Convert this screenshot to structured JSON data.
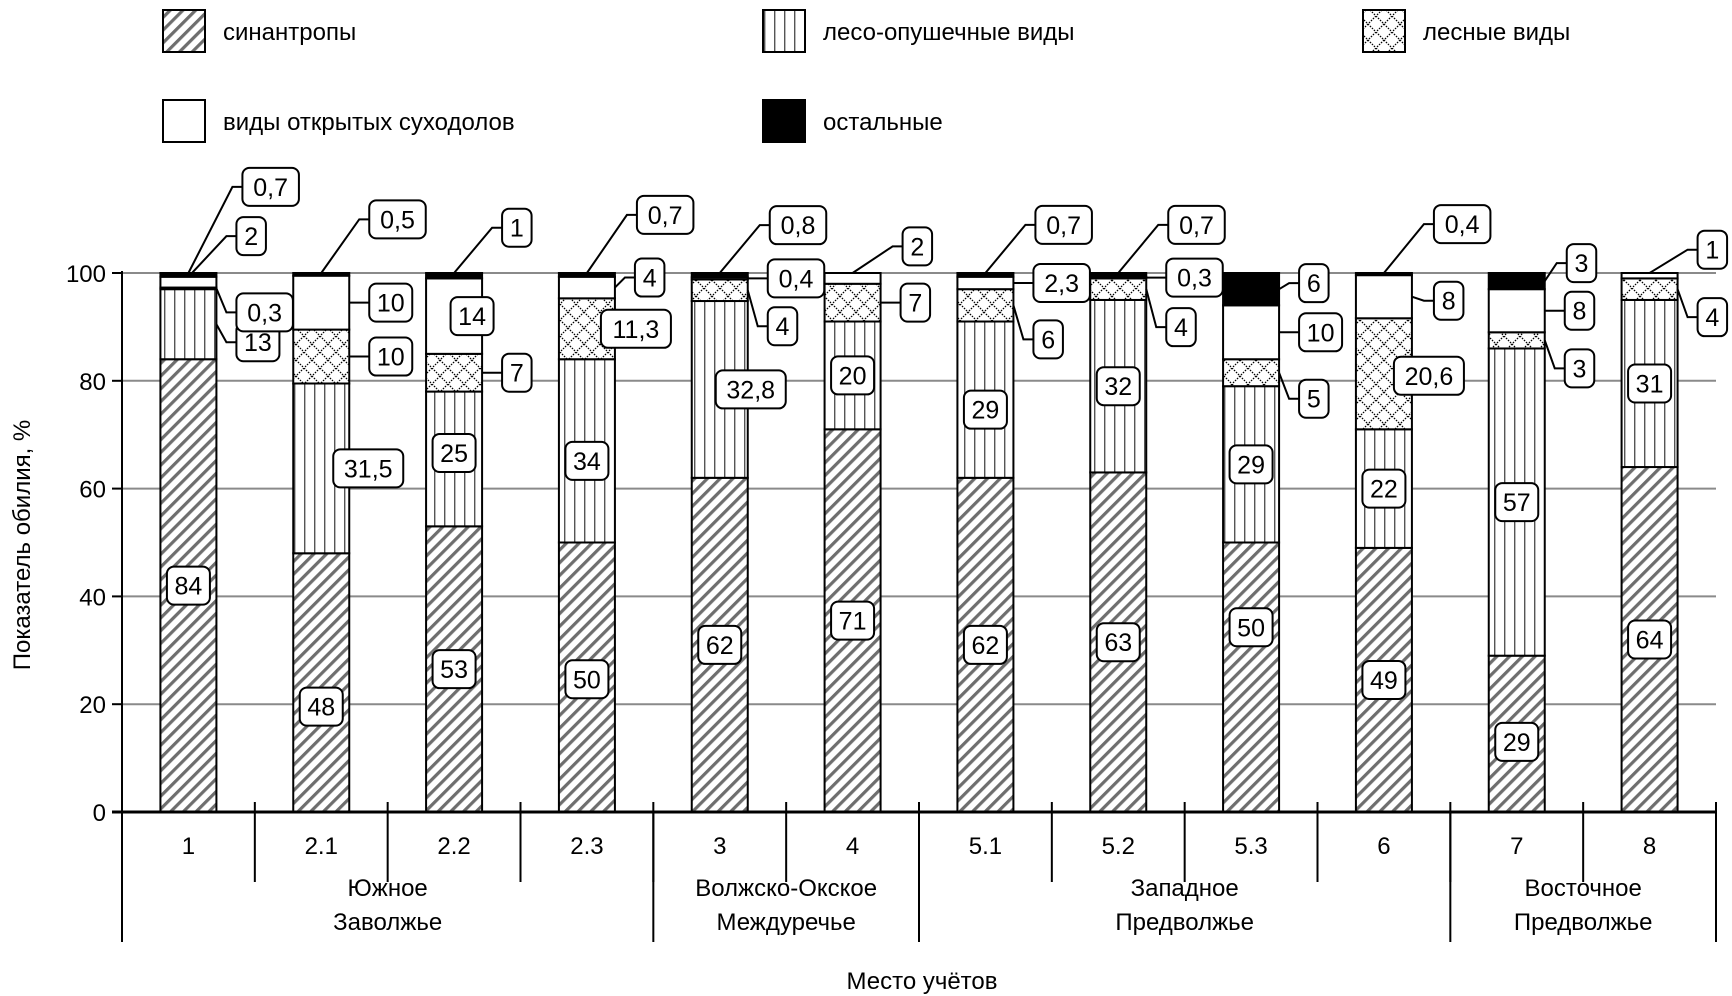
{
  "chart_data": {
    "type": "bar",
    "stacked": true,
    "title": "",
    "xlabel": "Место учётов",
    "ylabel": "Показатель обилия, %",
    "ylim": [
      0,
      100
    ],
    "yticks": [
      0,
      20,
      40,
      60,
      80,
      100
    ],
    "grid": true,
    "legend_position": "top",
    "categories": [
      "1",
      "2.1",
      "2.2",
      "2.3",
      "3",
      "4",
      "5.1",
      "5.2",
      "5.3",
      "6",
      "7",
      "8"
    ],
    "groups": [
      {
        "lines": [
          "Южное",
          "Заволжье"
        ],
        "from": 0,
        "to": 3
      },
      {
        "lines": [
          "Волжско-Окское",
          "Междуречье"
        ],
        "from": 4,
        "to": 5
      },
      {
        "lines": [
          "Западное",
          "Предволжье"
        ],
        "from": 6,
        "to": 9
      },
      {
        "lines": [
          "Восточное",
          "Предволжье"
        ],
        "from": 10,
        "to": 11
      }
    ],
    "series": [
      {
        "name": "синантропы",
        "pattern": "diagonal",
        "values": [
          84,
          48,
          53,
          50,
          62,
          71,
          62,
          63,
          50,
          49,
          29,
          64
        ],
        "labels": [
          "84",
          "48",
          "53",
          "50",
          "62",
          "71",
          "62",
          "63",
          "50",
          "49",
          "29",
          "64"
        ]
      },
      {
        "name": "лесо-опушечные виды",
        "pattern": "vertical",
        "values": [
          13,
          31.5,
          25,
          34,
          32.8,
          20,
          29,
          32,
          29,
          22,
          57,
          31
        ],
        "labels": [
          "13",
          "31,5",
          "25",
          "34",
          "32,8",
          "20",
          "29",
          "32",
          "29",
          "22",
          "57",
          "31"
        ]
      },
      {
        "name": "лесные виды",
        "pattern": "crosshatch",
        "values": [
          0.3,
          10,
          7,
          11.3,
          4,
          7,
          6,
          4,
          5,
          20.6,
          3,
          4
        ],
        "labels": [
          "0,3",
          "10",
          "7",
          "11,3",
          "4",
          "7",
          "6",
          "4",
          "5",
          "20,6",
          "3",
          "4"
        ]
      },
      {
        "name": "виды открытых суходолов",
        "pattern": "white",
        "values": [
          2,
          10,
          14,
          4,
          0.4,
          2,
          2.3,
          0.3,
          10,
          8,
          8,
          1
        ],
        "labels": [
          "2",
          "10",
          "14",
          "4",
          "0,4",
          "2",
          "2,3",
          "0,3",
          "10",
          "8",
          "8",
          "1"
        ]
      },
      {
        "name": "остальные",
        "pattern": "black",
        "values": [
          0.7,
          0.5,
          1,
          0.7,
          0.8,
          0,
          0.7,
          0.7,
          6,
          0.4,
          3,
          0
        ],
        "labels": [
          "0,7",
          "0,5",
          "1",
          "0,7",
          "0,8",
          "",
          "0,7",
          "0,7",
          "6",
          "0,4",
          "3",
          ""
        ]
      }
    ]
  }
}
